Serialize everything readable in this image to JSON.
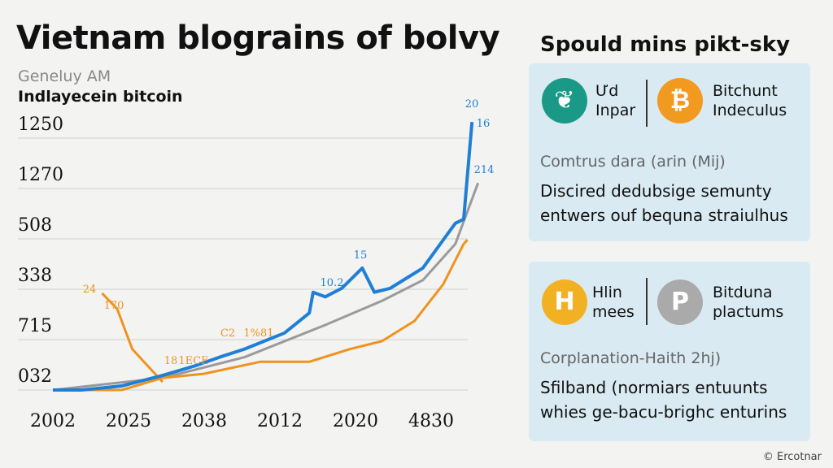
{
  "chart_data": {
    "type": "line",
    "title": "Vietnam blograins of bolvy",
    "subtitle": "Geneluy AM",
    "subtitle2": "Indlayecein bitcoin",
    "x_categories": [
      "2002",
      "2025",
      "2038",
      "2012",
      "2020",
      "4830"
    ],
    "y_categories": [
      "032",
      "715",
      "338",
      "508",
      "1270",
      "1250"
    ],
    "grid": true,
    "series": [
      {
        "color": "#1f7fd6",
        "x": [
          0,
          0.38,
          0.91,
          1.45,
          1.88,
          2.2,
          2.53,
          3.06,
          3.39,
          3.44,
          3.6,
          3.82,
          4.09,
          4.25,
          4.46,
          4.89,
          5.16,
          5.32,
          5.43,
          5.54
        ],
        "values": [
          0,
          0,
          0.08,
          0.29,
          0.48,
          0.65,
          0.81,
          1.13,
          1.53,
          1.94,
          1.85,
          2.02,
          2.42,
          1.94,
          2.02,
          2.42,
          2.98,
          3.31,
          3.39,
          5.32
        ]
      },
      {
        "color": "#9a9a9a",
        "x": [
          0,
          1.45,
          2.53,
          3.6,
          4.35,
          4.89,
          5.32,
          5.62
        ],
        "values": [
          0,
          0.24,
          0.65,
          1.29,
          1.77,
          2.18,
          2.9,
          4.11
        ]
      },
      {
        "color": "#f0921e",
        "x": [
          0,
          0.91,
          1.45,
          1.99,
          2.74,
          3.39,
          3.92,
          4.35,
          4.78,
          5.16,
          5.43,
          5.48
        ],
        "values": [
          0,
          0,
          0.24,
          0.32,
          0.56,
          0.56,
          0.81,
          0.97,
          1.37,
          2.1,
          2.9,
          2.98
        ]
      },
      {
        "color": "#f0921e",
        "x": [
          0.65,
          0.85,
          1.05,
          1.45
        ],
        "values": [
          1.92,
          1.61,
          0.81,
          0.16
        ]
      }
    ],
    "annotations": [
      "24",
      "170",
      "C2",
      "1%81",
      "18",
      "1ECE",
      "10.2",
      "15",
      "20",
      "16",
      "214"
    ]
  },
  "panel": {
    "title": "Spould mins pikt-sky",
    "cards": [
      {
        "left": "Ưd\nInpar",
        "right": "Bitchunt\nIndeculus",
        "note": "Comtrus dara (arin (Mij)",
        "text": "Discired dedubsige semunty entwers ouf bequna straiulhus"
      },
      {
        "left": "Hlin\nmees",
        "right": "Bitduna\nplactums",
        "note": "Corplanation-Haith 2hj)",
        "text": "Sfilband (normiars entuunts whies ge-bacu-brighc enturins"
      }
    ]
  },
  "footer": "© Ercotnar"
}
